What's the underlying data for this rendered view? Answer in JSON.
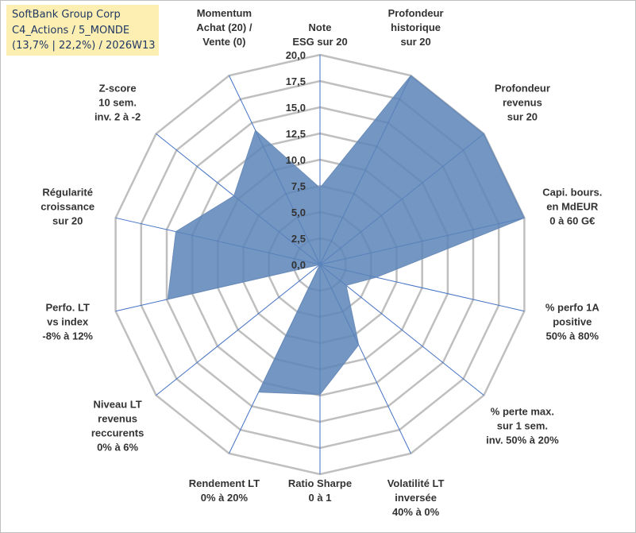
{
  "title": {
    "lines": [
      "SoftBank Group Corp",
      "C4_Actions / 5_MONDE",
      "(13,7% | 22,2%) / 2026W13"
    ]
  },
  "colors": {
    "title_bg": "#fdeeb2",
    "title_text": "#1f3864",
    "grid": "#bfbfbf",
    "spoke": "#4472c4",
    "fill": "#5b84b9",
    "outline": "#6b8cb8"
  },
  "chart_data": {
    "type": "radar",
    "title": "SoftBank Group Corp",
    "rlim": [
      0,
      20
    ],
    "ticks": [
      "0,0",
      "2,5",
      "5,0",
      "7,5",
      "10,0",
      "12,5",
      "15,0",
      "17,5",
      "20,0"
    ],
    "tick_values": [
      0,
      2.5,
      5,
      7.5,
      10,
      12.5,
      15,
      17.5,
      20
    ],
    "axes": [
      {
        "label": [
          "Note",
          "ESG sur 20"
        ],
        "value": 7.3
      },
      {
        "label": [
          "Profondeur",
          "historique",
          "sur 20"
        ],
        "value": 20
      },
      {
        "label": [
          "Profondeur",
          "revenus",
          "sur 20"
        ],
        "value": 20
      },
      {
        "label": [
          "Capi. bours.",
          "en MdEUR",
          "0 à 60 G€"
        ],
        "value": 20
      },
      {
        "label": [
          "% perfo 1A",
          "positive",
          "50% à 80%"
        ],
        "value": 5.5
      },
      {
        "label": [
          "% perte max.",
          "sur 1 sem.",
          "inv. 50% à 20%"
        ],
        "value": 3.2
      },
      {
        "label": [
          "Volatilité LT",
          "inversée",
          "40% à 0%"
        ],
        "value": 8.5
      },
      {
        "label": [
          "Ratio Sharpe",
          "0 à 1"
        ],
        "value": 12.4
      },
      {
        "label": [
          "Rendement LT",
          "0% à 20%"
        ],
        "value": 13.5
      },
      {
        "label": [
          "Niveau LT",
          "revenus",
          "reccurents",
          "0% à 6%"
        ],
        "value": 0
      },
      {
        "label": [
          "Perfo. LT",
          "vs index",
          "-8% à 12%"
        ],
        "value": 14.9
      },
      {
        "label": [
          "Régularité",
          "croissance",
          "sur 20"
        ],
        "value": 14.1
      },
      {
        "label": [
          "Z-score",
          "10 sem.",
          "inv. 2 à -2"
        ],
        "value": 10.5
      },
      {
        "label": [
          "Momentum",
          "Achat (20) /",
          "Vente (0)"
        ],
        "value": 14.2
      }
    ]
  }
}
